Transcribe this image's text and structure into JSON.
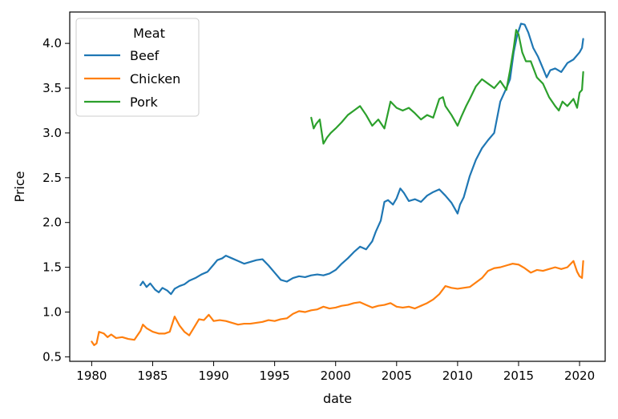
{
  "chart_data": {
    "type": "line",
    "xlabel": "date",
    "ylabel": "Price",
    "xlim": [
      1978.2,
      2022.1
    ],
    "ylim": [
      0.45,
      4.35
    ],
    "x_ticks": [
      1980,
      1985,
      1990,
      1995,
      2000,
      2005,
      2010,
      2015,
      2020
    ],
    "y_ticks": [
      0.5,
      1.0,
      1.5,
      2.0,
      2.5,
      3.0,
      3.5,
      4.0
    ],
    "x_tick_labels": [
      "1980",
      "1985",
      "1990",
      "1995",
      "2000",
      "2005",
      "2010",
      "2015",
      "2020"
    ],
    "y_tick_labels": [
      "0.5",
      "1.0",
      "1.5",
      "2.0",
      "2.5",
      "3.0",
      "3.5",
      "4.0"
    ],
    "grid": false,
    "legend": {
      "title": "Meat",
      "position": "top-left"
    },
    "series": [
      {
        "name": "Beef",
        "color": "#1f77b4",
        "points": [
          [
            1984.0,
            1.3
          ],
          [
            1984.2,
            1.34
          ],
          [
            1984.5,
            1.28
          ],
          [
            1984.8,
            1.32
          ],
          [
            1985.2,
            1.25
          ],
          [
            1985.5,
            1.22
          ],
          [
            1985.8,
            1.27
          ],
          [
            1986.2,
            1.24
          ],
          [
            1986.5,
            1.2
          ],
          [
            1986.8,
            1.26
          ],
          [
            1987.2,
            1.29
          ],
          [
            1987.6,
            1.31
          ],
          [
            1988.0,
            1.35
          ],
          [
            1988.5,
            1.38
          ],
          [
            1989.0,
            1.42
          ],
          [
            1989.5,
            1.45
          ],
          [
            1990.0,
            1.53
          ],
          [
            1990.3,
            1.58
          ],
          [
            1990.7,
            1.6
          ],
          [
            1991.0,
            1.63
          ],
          [
            1991.5,
            1.6
          ],
          [
            1992.0,
            1.57
          ],
          [
            1992.5,
            1.54
          ],
          [
            1993.0,
            1.56
          ],
          [
            1993.5,
            1.58
          ],
          [
            1994.0,
            1.59
          ],
          [
            1994.5,
            1.52
          ],
          [
            1995.0,
            1.44
          ],
          [
            1995.5,
            1.36
          ],
          [
            1996.0,
            1.34
          ],
          [
            1996.5,
            1.38
          ],
          [
            1997.0,
            1.4
          ],
          [
            1997.5,
            1.39
          ],
          [
            1998.0,
            1.41
          ],
          [
            1998.5,
            1.42
          ],
          [
            1999.0,
            1.41
          ],
          [
            1999.5,
            1.43
          ],
          [
            2000.0,
            1.47
          ],
          [
            2000.5,
            1.54
          ],
          [
            2001.0,
            1.6
          ],
          [
            2001.5,
            1.67
          ],
          [
            2002.0,
            1.73
          ],
          [
            2002.5,
            1.7
          ],
          [
            2003.0,
            1.79
          ],
          [
            2003.3,
            1.9
          ],
          [
            2003.7,
            2.02
          ],
          [
            2004.0,
            2.23
          ],
          [
            2004.3,
            2.25
          ],
          [
            2004.7,
            2.2
          ],
          [
            2005.0,
            2.27
          ],
          [
            2005.3,
            2.38
          ],
          [
            2005.6,
            2.33
          ],
          [
            2006.0,
            2.24
          ],
          [
            2006.5,
            2.26
          ],
          [
            2007.0,
            2.23
          ],
          [
            2007.5,
            2.3
          ],
          [
            2008.0,
            2.34
          ],
          [
            2008.5,
            2.37
          ],
          [
            2009.0,
            2.3
          ],
          [
            2009.5,
            2.22
          ],
          [
            2010.0,
            2.1
          ],
          [
            2010.2,
            2.2
          ],
          [
            2010.5,
            2.28
          ],
          [
            2011.0,
            2.52
          ],
          [
            2011.5,
            2.7
          ],
          [
            2012.0,
            2.83
          ],
          [
            2012.5,
            2.92
          ],
          [
            2013.0,
            3.0
          ],
          [
            2013.5,
            3.35
          ],
          [
            2014.0,
            3.5
          ],
          [
            2014.3,
            3.6
          ],
          [
            2014.6,
            3.9
          ],
          [
            2014.9,
            4.1
          ],
          [
            2015.2,
            4.22
          ],
          [
            2015.5,
            4.21
          ],
          [
            2015.8,
            4.12
          ],
          [
            2016.2,
            3.95
          ],
          [
            2016.6,
            3.85
          ],
          [
            2017.0,
            3.72
          ],
          [
            2017.3,
            3.62
          ],
          [
            2017.6,
            3.7
          ],
          [
            2018.0,
            3.72
          ],
          [
            2018.5,
            3.68
          ],
          [
            2019.0,
            3.78
          ],
          [
            2019.5,
            3.82
          ],
          [
            2020.0,
            3.9
          ],
          [
            2020.2,
            3.95
          ],
          [
            2020.3,
            4.05
          ]
        ]
      },
      {
        "name": "Chicken",
        "color": "#ff7f0e",
        "points": [
          [
            1980.0,
            0.67
          ],
          [
            1980.2,
            0.63
          ],
          [
            1980.4,
            0.65
          ],
          [
            1980.6,
            0.78
          ],
          [
            1981.0,
            0.76
          ],
          [
            1981.3,
            0.72
          ],
          [
            1981.6,
            0.75
          ],
          [
            1982.0,
            0.71
          ],
          [
            1982.5,
            0.72
          ],
          [
            1983.0,
            0.7
          ],
          [
            1983.5,
            0.69
          ],
          [
            1984.0,
            0.79
          ],
          [
            1984.2,
            0.86
          ],
          [
            1984.5,
            0.82
          ],
          [
            1985.0,
            0.78
          ],
          [
            1985.5,
            0.76
          ],
          [
            1986.0,
            0.76
          ],
          [
            1986.4,
            0.78
          ],
          [
            1986.8,
            0.95
          ],
          [
            1987.2,
            0.85
          ],
          [
            1987.6,
            0.78
          ],
          [
            1988.0,
            0.74
          ],
          [
            1988.4,
            0.83
          ],
          [
            1988.8,
            0.92
          ],
          [
            1989.2,
            0.91
          ],
          [
            1989.6,
            0.97
          ],
          [
            1990.0,
            0.9
          ],
          [
            1990.5,
            0.91
          ],
          [
            1991.0,
            0.9
          ],
          [
            1991.5,
            0.88
          ],
          [
            1992.0,
            0.86
          ],
          [
            1992.5,
            0.87
          ],
          [
            1993.0,
            0.87
          ],
          [
            1993.5,
            0.88
          ],
          [
            1994.0,
            0.89
          ],
          [
            1994.5,
            0.91
          ],
          [
            1995.0,
            0.9
          ],
          [
            1995.5,
            0.92
          ],
          [
            1996.0,
            0.93
          ],
          [
            1996.5,
            0.98
          ],
          [
            1997.0,
            1.01
          ],
          [
            1997.5,
            1.0
          ],
          [
            1998.0,
            1.02
          ],
          [
            1998.5,
            1.03
          ],
          [
            1999.0,
            1.06
          ],
          [
            1999.5,
            1.04
          ],
          [
            2000.0,
            1.05
          ],
          [
            2000.5,
            1.07
          ],
          [
            2001.0,
            1.08
          ],
          [
            2001.5,
            1.1
          ],
          [
            2002.0,
            1.11
          ],
          [
            2002.5,
            1.08
          ],
          [
            2003.0,
            1.05
          ],
          [
            2003.5,
            1.07
          ],
          [
            2004.0,
            1.08
          ],
          [
            2004.5,
            1.1
          ],
          [
            2005.0,
            1.06
          ],
          [
            2005.5,
            1.05
          ],
          [
            2006.0,
            1.06
          ],
          [
            2006.5,
            1.04
          ],
          [
            2007.0,
            1.07
          ],
          [
            2007.5,
            1.1
          ],
          [
            2008.0,
            1.14
          ],
          [
            2008.5,
            1.2
          ],
          [
            2009.0,
            1.29
          ],
          [
            2009.5,
            1.27
          ],
          [
            2010.0,
            1.26
          ],
          [
            2010.5,
            1.27
          ],
          [
            2011.0,
            1.28
          ],
          [
            2011.5,
            1.33
          ],
          [
            2012.0,
            1.38
          ],
          [
            2012.5,
            1.46
          ],
          [
            2013.0,
            1.49
          ],
          [
            2013.5,
            1.5
          ],
          [
            2014.0,
            1.52
          ],
          [
            2014.5,
            1.54
          ],
          [
            2015.0,
            1.53
          ],
          [
            2015.5,
            1.49
          ],
          [
            2016.0,
            1.44
          ],
          [
            2016.5,
            1.47
          ],
          [
            2017.0,
            1.46
          ],
          [
            2017.5,
            1.48
          ],
          [
            2018.0,
            1.5
          ],
          [
            2018.5,
            1.48
          ],
          [
            2019.0,
            1.5
          ],
          [
            2019.5,
            1.57
          ],
          [
            2019.8,
            1.45
          ],
          [
            2020.0,
            1.4
          ],
          [
            2020.2,
            1.38
          ],
          [
            2020.3,
            1.57
          ]
        ]
      },
      {
        "name": "Pork",
        "color": "#2ca02c",
        "points": [
          [
            1998.0,
            3.17
          ],
          [
            1998.2,
            3.05
          ],
          [
            1998.4,
            3.1
          ],
          [
            1998.7,
            3.15
          ],
          [
            1999.0,
            2.88
          ],
          [
            1999.3,
            2.95
          ],
          [
            1999.6,
            3.0
          ],
          [
            2000.0,
            3.05
          ],
          [
            2000.5,
            3.12
          ],
          [
            2001.0,
            3.2
          ],
          [
            2001.5,
            3.25
          ],
          [
            2002.0,
            3.3
          ],
          [
            2002.5,
            3.2
          ],
          [
            2003.0,
            3.08
          ],
          [
            2003.5,
            3.15
          ],
          [
            2004.0,
            3.05
          ],
          [
            2004.5,
            3.35
          ],
          [
            2005.0,
            3.28
          ],
          [
            2005.5,
            3.25
          ],
          [
            2006.0,
            3.28
          ],
          [
            2006.5,
            3.22
          ],
          [
            2007.0,
            3.15
          ],
          [
            2007.5,
            3.2
          ],
          [
            2008.0,
            3.17
          ],
          [
            2008.5,
            3.38
          ],
          [
            2008.8,
            3.4
          ],
          [
            2009.0,
            3.3
          ],
          [
            2009.5,
            3.2
          ],
          [
            2010.0,
            3.08
          ],
          [
            2010.3,
            3.18
          ],
          [
            2010.7,
            3.3
          ],
          [
            2011.0,
            3.38
          ],
          [
            2011.5,
            3.52
          ],
          [
            2012.0,
            3.6
          ],
          [
            2012.5,
            3.55
          ],
          [
            2013.0,
            3.5
          ],
          [
            2013.5,
            3.58
          ],
          [
            2014.0,
            3.48
          ],
          [
            2014.3,
            3.7
          ],
          [
            2014.6,
            3.95
          ],
          [
            2014.8,
            4.15
          ],
          [
            2015.0,
            4.1
          ],
          [
            2015.3,
            3.9
          ],
          [
            2015.6,
            3.8
          ],
          [
            2016.0,
            3.8
          ],
          [
            2016.5,
            3.62
          ],
          [
            2017.0,
            3.55
          ],
          [
            2017.5,
            3.4
          ],
          [
            2018.0,
            3.3
          ],
          [
            2018.3,
            3.25
          ],
          [
            2018.6,
            3.35
          ],
          [
            2019.0,
            3.3
          ],
          [
            2019.5,
            3.38
          ],
          [
            2019.8,
            3.28
          ],
          [
            2020.0,
            3.45
          ],
          [
            2020.2,
            3.48
          ],
          [
            2020.3,
            3.68
          ]
        ]
      }
    ]
  }
}
